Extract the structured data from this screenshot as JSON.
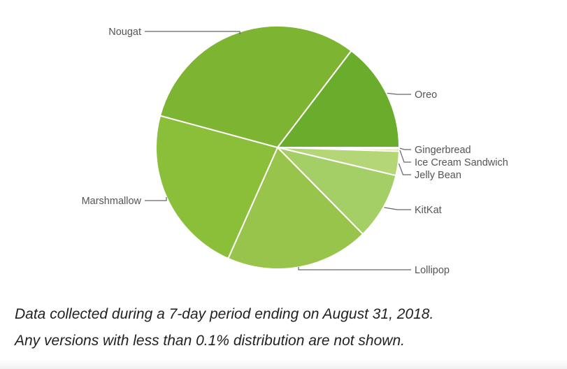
{
  "chart_data": {
    "type": "pie",
    "title": "",
    "categories": [
      "Gingerbread",
      "Ice Cream Sandwich",
      "Jelly Bean",
      "KitKat",
      "Lollipop",
      "Marshmallow",
      "Nougat",
      "Oreo"
    ],
    "values": [
      0.2,
      0.3,
      3.2,
      8.9,
      19.0,
      22.5,
      31.1,
      14.6
    ],
    "colors": [
      "#dce9b3",
      "#cde095",
      "#b5d676",
      "#a4ce66",
      "#98c44b",
      "#8bbf3a",
      "#7db431",
      "#6aac2b"
    ],
    "labels_shown": true,
    "legend": "none"
  },
  "captions": [
    "Data collected during a 7-day period ending on August 31, 2018.",
    "Any versions with less than 0.1% distribution are not shown."
  ]
}
